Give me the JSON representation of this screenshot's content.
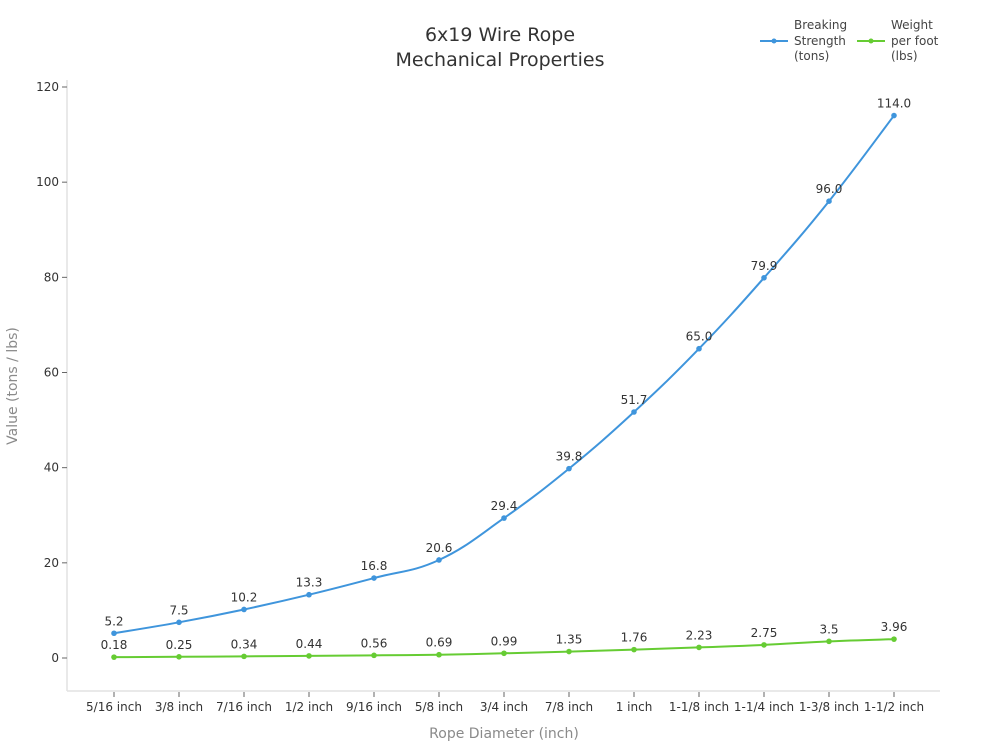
{
  "chart_data": {
    "type": "line",
    "title": "6x19 Wire Rope\nMechanical Properties",
    "title_lines": [
      "6x19 Wire Rope",
      "Mechanical Properties"
    ],
    "xlabel": "Rope Diameter (inch)",
    "ylabel": "Value (tons / lbs)",
    "ylim": [
      -8,
      124
    ],
    "yticks": [
      0,
      20,
      40,
      60,
      80,
      100,
      120
    ],
    "grid": false,
    "legend_position": "top-right",
    "categories": [
      "5/16 inch",
      "3/8 inch",
      "7/16 inch",
      "1/2 inch",
      "9/16 inch",
      "5/8 inch",
      "3/4 inch",
      "7/8 inch",
      "1 inch",
      "1-1/8 inch",
      "1-1/4 inch",
      "1-3/8 inch",
      "1-1/2 inch"
    ],
    "series": [
      {
        "name": "Breaking Strength (tons)",
        "legend_lines": [
          "Breaking",
          "Strength",
          "(tons)"
        ],
        "color": "#3f95dc",
        "values": [
          5.2,
          7.5,
          10.2,
          13.3,
          16.8,
          20.6,
          29.4,
          39.8,
          51.7,
          65.0,
          79.9,
          96.0,
          114.0
        ],
        "labels": [
          "5.2",
          "7.5",
          "10.2",
          "13.3",
          "16.8",
          "20.6",
          "29.4",
          "39.8",
          "51.7",
          "65.0",
          "79.9",
          "96.0",
          "114.0"
        ]
      },
      {
        "name": "Weight per foot (lbs)",
        "legend_lines": [
          "Weight",
          "per foot",
          "(lbs)"
        ],
        "color": "#66cc33",
        "values": [
          0.18,
          0.25,
          0.34,
          0.44,
          0.56,
          0.69,
          0.99,
          1.35,
          1.76,
          2.23,
          2.75,
          3.5,
          3.96
        ],
        "labels": [
          "0.18",
          "0.25",
          "0.34",
          "0.44",
          "0.56",
          "0.69",
          "0.99",
          "1.35",
          "1.76",
          "2.23",
          "2.75",
          "3.5",
          "3.96"
        ]
      }
    ]
  }
}
